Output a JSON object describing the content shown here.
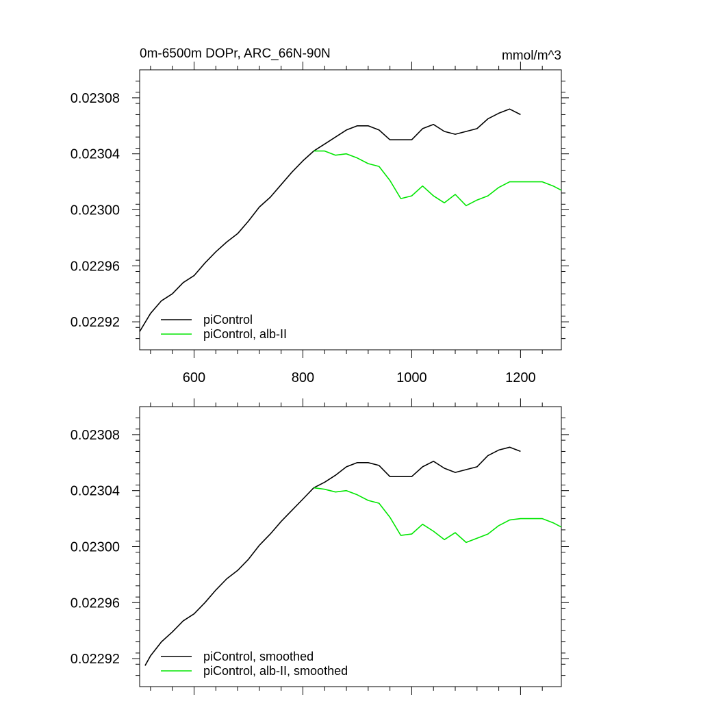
{
  "figure": {
    "title_left": "0m-6500m DOPr, ARC_66N-90N",
    "title_right": "mmol/m^3"
  },
  "chart_data": [
    {
      "type": "line",
      "title": "0m-6500m DOPr, ARC_66N-90N",
      "units": "mmol/m^3",
      "xlabel": "",
      "ylabel": "",
      "xlim": [
        500,
        1275
      ],
      "ylim": [
        0.0229,
        0.0231
      ],
      "x_ticks": [
        600,
        800,
        1000,
        1200
      ],
      "x_tick_labels": [
        "600",
        "800",
        "1000",
        "1200"
      ],
      "y_ticks": [
        0.02292,
        0.02296,
        0.023,
        0.02304,
        0.02308
      ],
      "y_tick_labels": [
        "0.02292",
        "0.02296",
        "0.02300",
        "0.02304",
        "0.02308"
      ],
      "grid": false,
      "legend_position": "bottom-left",
      "series": [
        {
          "name": "piControl",
          "color": "#000000",
          "x": [
            500,
            520,
            540,
            560,
            580,
            600,
            620,
            640,
            660,
            680,
            700,
            720,
            740,
            760,
            780,
            800,
            820,
            840,
            860,
            880,
            900,
            920,
            940,
            960,
            980,
            1000,
            1020,
            1040,
            1060,
            1080,
            1100,
            1120,
            1140,
            1160,
            1180,
            1200
          ],
          "y": [
            0.022913,
            0.022926,
            0.022935,
            0.02294,
            0.022948,
            0.022953,
            0.022962,
            0.02297,
            0.022977,
            0.022983,
            0.022992,
            0.023002,
            0.023009,
            0.023018,
            0.023027,
            0.023035,
            0.023042,
            0.023047,
            0.023052,
            0.023057,
            0.02306,
            0.02306,
            0.023057,
            0.02305,
            0.02305,
            0.02305,
            0.023058,
            0.023061,
            0.023056,
            0.023054,
            0.023056,
            0.023058,
            0.023065,
            0.023069,
            0.023072,
            0.023068
          ]
        },
        {
          "name": "piControl, alb-II",
          "color": "#00e600",
          "x": [
            820,
            840,
            860,
            880,
            900,
            920,
            940,
            960,
            980,
            1000,
            1020,
            1040,
            1060,
            1080,
            1100,
            1120,
            1140,
            1160,
            1180,
            1200,
            1220,
            1240,
            1260,
            1275
          ],
          "y": [
            0.023042,
            0.023042,
            0.023039,
            0.02304,
            0.023037,
            0.023033,
            0.023031,
            0.023021,
            0.023008,
            0.02301,
            0.023017,
            0.02301,
            0.023005,
            0.023011,
            0.023003,
            0.023007,
            0.02301,
            0.023016,
            0.02302,
            0.02302,
            0.02302,
            0.02302,
            0.023017,
            0.023014
          ]
        }
      ]
    },
    {
      "type": "line",
      "title": "",
      "xlabel": "",
      "ylabel": "",
      "xlim": [
        500,
        1275
      ],
      "ylim": [
        0.0229,
        0.0231
      ],
      "x_ticks": [
        600,
        800,
        1000,
        1200
      ],
      "x_tick_labels": [],
      "y_ticks": [
        0.02292,
        0.02296,
        0.023,
        0.02304,
        0.02308
      ],
      "y_tick_labels": [
        "0.02292",
        "0.02296",
        "0.02300",
        "0.02304",
        "0.02308"
      ],
      "grid": false,
      "legend_position": "bottom-left",
      "series": [
        {
          "name": "piControl, smoothed",
          "color": "#000000",
          "x": [
            510,
            520,
            540,
            560,
            580,
            600,
            620,
            640,
            660,
            680,
            700,
            720,
            740,
            760,
            780,
            800,
            820,
            840,
            860,
            880,
            900,
            920,
            940,
            960,
            980,
            1000,
            1020,
            1040,
            1060,
            1080,
            1100,
            1120,
            1140,
            1160,
            1180,
            1200
          ],
          "y": [
            0.022915,
            0.022922,
            0.022932,
            0.022939,
            0.022947,
            0.022952,
            0.02296,
            0.022969,
            0.022977,
            0.022983,
            0.022991,
            0.023001,
            0.023009,
            0.023018,
            0.023026,
            0.023034,
            0.023042,
            0.023046,
            0.023051,
            0.023057,
            0.02306,
            0.02306,
            0.023058,
            0.02305,
            0.02305,
            0.02305,
            0.023057,
            0.023061,
            0.023056,
            0.023053,
            0.023055,
            0.023057,
            0.023065,
            0.023069,
            0.023071,
            0.023068
          ]
        },
        {
          "name": "piControl, alb-II, smoothed",
          "color": "#00e600",
          "x": [
            820,
            840,
            860,
            880,
            900,
            920,
            940,
            960,
            980,
            1000,
            1020,
            1040,
            1060,
            1080,
            1100,
            1120,
            1140,
            1160,
            1180,
            1200,
            1220,
            1240,
            1260,
            1275
          ],
          "y": [
            0.023042,
            0.023041,
            0.023039,
            0.02304,
            0.023037,
            0.023033,
            0.023031,
            0.023021,
            0.023008,
            0.023009,
            0.023016,
            0.023011,
            0.023005,
            0.02301,
            0.023003,
            0.023006,
            0.023009,
            0.023015,
            0.023019,
            0.02302,
            0.02302,
            0.02302,
            0.023017,
            0.023014
          ]
        }
      ]
    }
  ]
}
